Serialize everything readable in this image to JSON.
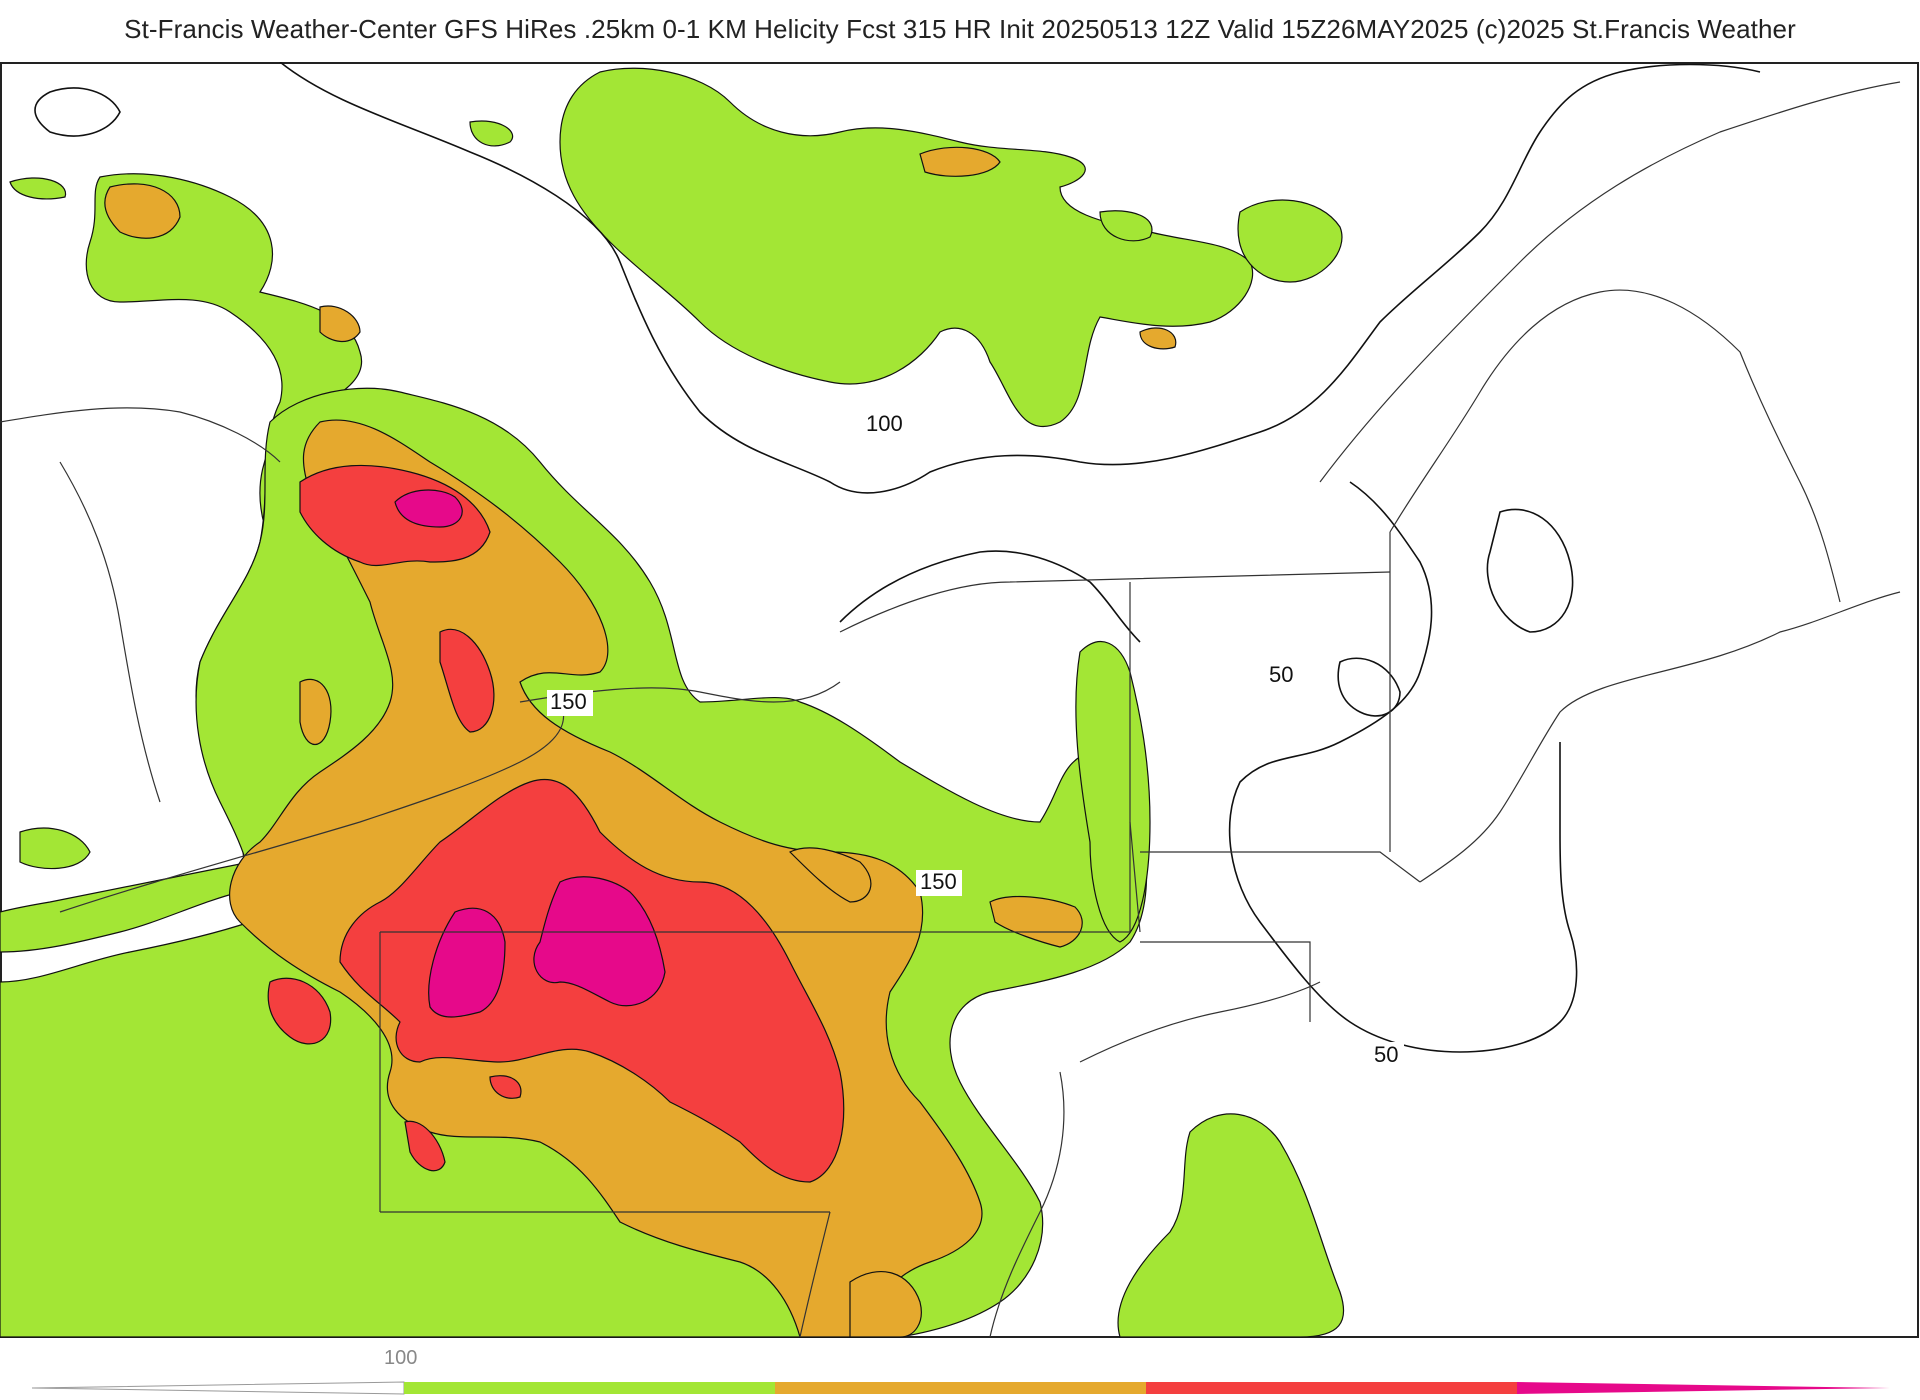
{
  "header": {
    "title": "St-Francis Weather-Center GFS HiRes .25km 0-1 KM Helicity Fcst 315 HR Init 20250513 12Z  Valid 15Z26MAY2025    (c)2025 St.Francis Weather"
  },
  "map": {
    "contour_labels": [
      "100",
      "150",
      "150",
      "50",
      "50"
    ],
    "colors": {
      "level_100": "#a3e635",
      "level_150": "#e5a92e",
      "level_200": "#f43f3f",
      "level_250": "#e6098a",
      "contour": "#111111",
      "borders": "#333333",
      "counties": "#bbbbbb"
    }
  },
  "legend": {
    "tick_label": "100",
    "colors": [
      "#a3e635",
      "#e5a92e",
      "#f43f3f",
      "#e6098a"
    ]
  }
}
